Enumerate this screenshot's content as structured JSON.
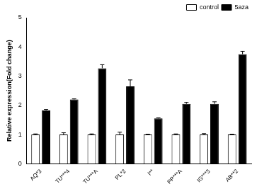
{
  "chart_data": {
    "type": "bar",
    "y_label": "Relative expression(Fold change)",
    "categories": [
      "AQ*3",
      "TU***4",
      "TU***A",
      "PL*2",
      "I**",
      "PP***A",
      "IG***3",
      "AB**2"
    ],
    "series": [
      {
        "name": "control",
        "color": "#ffffff",
        "values": [
          1,
          1,
          1,
          1,
          1,
          1,
          1,
          1
        ],
        "errors": [
          0.02,
          0.06,
          0.02,
          0.08,
          0.01,
          0.02,
          0.03,
          0.01
        ]
      },
      {
        "name": "5aza",
        "color": "#000000",
        "values": [
          1.83,
          2.2,
          3.27,
          2.65,
          1.55,
          2.05,
          2.05,
          3.75
        ],
        "errors": [
          0.03,
          0.02,
          0.12,
          0.22,
          0.02,
          0.05,
          0.07,
          0.1
        ]
      }
    ],
    "ylim": [
      0,
      5
    ],
    "yticks": [
      0,
      1,
      2,
      3,
      4,
      5
    ],
    "grid": false,
    "legend": "upper right"
  }
}
